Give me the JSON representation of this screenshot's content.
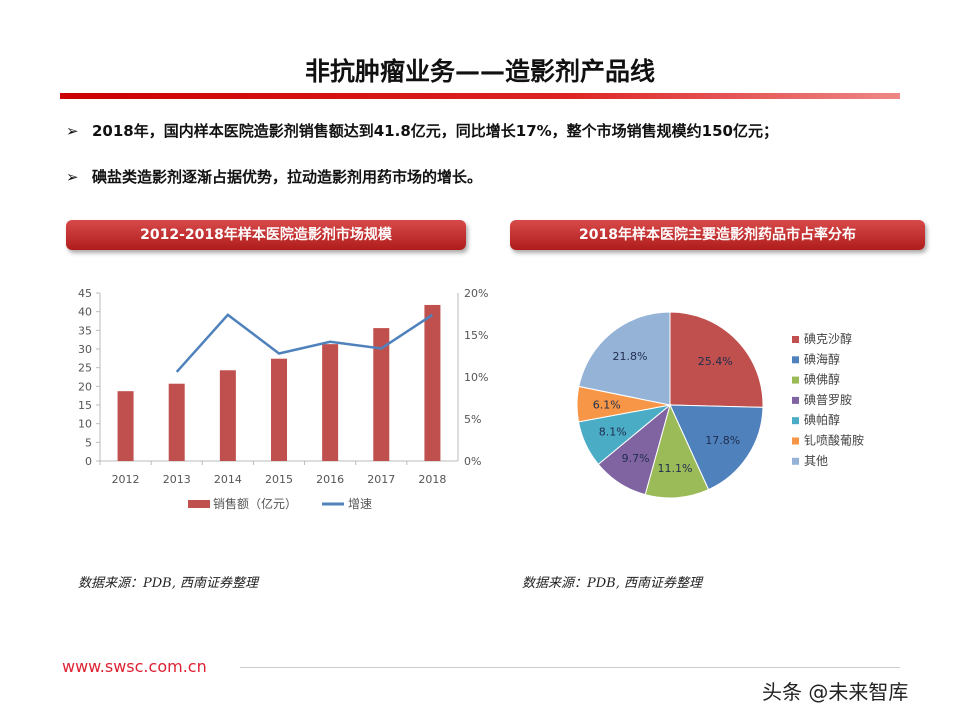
{
  "title": "非抗肿瘤业务——造影剂产品线",
  "bullets": [
    {
      "marker": "➢",
      "text": "2018年，国内样本医院造影剂销售额达到41.8亿元，同比增长17%，整个市场销售规模约150亿元；"
    },
    {
      "marker": "➢",
      "text": "碘盐类造影剂逐渐占据优势，拉动造影剂用药市场的增长。"
    }
  ],
  "left_banner": "2012-2018年样本医院造影剂市场规模",
  "right_banner": "2018年样本医院主要造影剂药品市占率分布",
  "source_left": "数据来源：PDB, 西南证券整理",
  "source_right": "数据来源：PDB, 西南证券整理",
  "footer_url": "www.swsc.com.cn",
  "watermark": "头条 @未来智库",
  "chart_data": [
    {
      "type": "bar+line",
      "categories": [
        "2012",
        "2013",
        "2014",
        "2015",
        "2016",
        "2017",
        "2018"
      ],
      "series": [
        {
          "name": "销售额（亿元）",
          "type": "bar",
          "axis": "left",
          "color": "#c0504d",
          "values": [
            18.7,
            20.7,
            24.3,
            27.4,
            31.3,
            35.6,
            41.8
          ]
        },
        {
          "name": "增速",
          "type": "line",
          "axis": "right",
          "color": "#4f81bd",
          "values": [
            null,
            10.6,
            17.4,
            12.8,
            14.2,
            13.4,
            17.4
          ]
        }
      ],
      "ylim": [
        0,
        45
      ],
      "yticks": [
        "0",
        "5",
        "10",
        "15",
        "20",
        "25",
        "30",
        "35",
        "40",
        "45"
      ],
      "y2lim": [
        0,
        20
      ],
      "y2ticks": [
        "0%",
        "5%",
        "10%",
        "15%",
        "20%"
      ],
      "legend": "bottom",
      "grid": false
    },
    {
      "type": "pie",
      "labels": [
        "碘克沙醇",
        "碘海醇",
        "碘佛醇",
        "碘普罗胺",
        "碘帕醇",
        "钆喷酸葡胺",
        "其他"
      ],
      "values": [
        25.4,
        17.8,
        11.1,
        9.7,
        8.1,
        6.1,
        21.8
      ],
      "value_labels": [
        "25.4%",
        "17.8%",
        "11.1%",
        "9.7%",
        "8.1%",
        "6.1%",
        "21.8%"
      ],
      "colors": [
        "#c0504d",
        "#4f81bd",
        "#9bbb59",
        "#8064a2",
        "#4bacc6",
        "#f79646",
        "#95b3d7"
      ],
      "legend": "right"
    }
  ]
}
